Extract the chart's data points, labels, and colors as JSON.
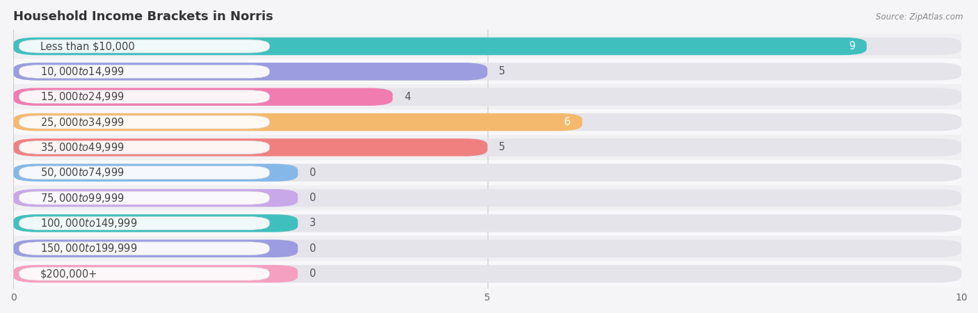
{
  "title": "Household Income Brackets in Norris",
  "source": "Source: ZipAtlas.com",
  "categories": [
    "Less than $10,000",
    "$10,000 to $14,999",
    "$15,000 to $24,999",
    "$25,000 to $34,999",
    "$35,000 to $49,999",
    "$50,000 to $74,999",
    "$75,000 to $99,999",
    "$100,000 to $149,999",
    "$150,000 to $199,999",
    "$200,000+"
  ],
  "values": [
    9,
    5,
    4,
    6,
    5,
    0,
    0,
    3,
    0,
    0
  ],
  "bar_colors": [
    "#40bfbf",
    "#9b9de0",
    "#f07cb0",
    "#f5b96e",
    "#f08080",
    "#85b8e8",
    "#c8a8e8",
    "#40bfbf",
    "#9b9de0",
    "#f5a0c0"
  ],
  "xlim": [
    0,
    10
  ],
  "xticks": [
    0,
    5,
    10
  ],
  "bg_color": "#f0f0f0",
  "row_bg_color": "#ffffff",
  "bar_track_color": "#e8e8ec",
  "title_fontsize": 13,
  "label_fontsize": 10.5,
  "value_fontsize": 10.5
}
